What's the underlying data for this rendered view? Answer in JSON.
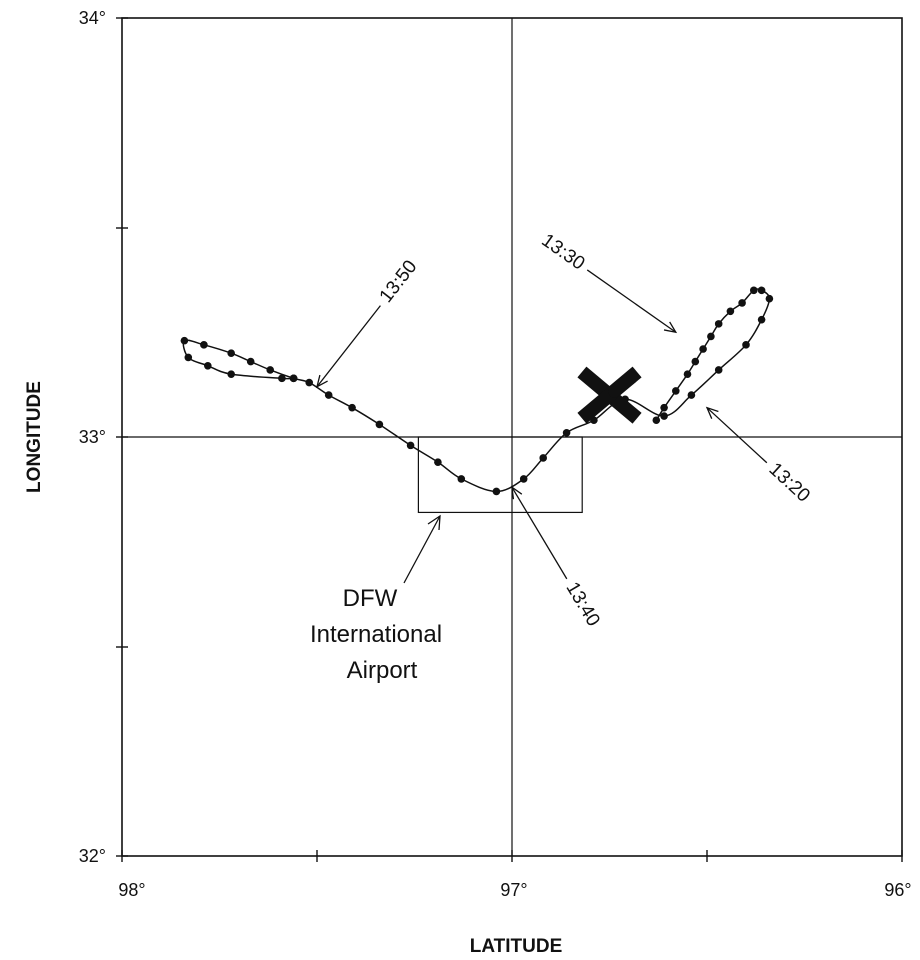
{
  "chart_data": {
    "type": "line",
    "xlabel": "LATITUDE",
    "ylabel": "LONGITUDE",
    "xlim": [
      98,
      96
    ],
    "ylim": [
      32,
      34
    ],
    "x_ticks": [
      "98°",
      "97°",
      "96°"
    ],
    "y_ticks": [
      "34°",
      "33°",
      "32°"
    ],
    "airport_box": {
      "x0": 97.24,
      "x1": 96.82,
      "y0": 32.82,
      "y1": 33.0
    },
    "airport_label": [
      "DFW",
      "International",
      "Airport"
    ],
    "crash_marker": {
      "x": 96.75,
      "y": 33.1,
      "icon": "aircraft-crash-x-icon"
    },
    "track": [
      [
        96.63,
        33.04
      ],
      [
        96.61,
        33.07
      ],
      [
        96.58,
        33.11
      ],
      [
        96.55,
        33.15
      ],
      [
        96.53,
        33.18
      ],
      [
        96.51,
        33.21
      ],
      [
        96.49,
        33.24
      ],
      [
        96.47,
        33.27
      ],
      [
        96.44,
        33.3
      ],
      [
        96.41,
        33.32
      ],
      [
        96.38,
        33.35
      ],
      [
        96.36,
        33.35
      ],
      [
        96.34,
        33.33
      ],
      [
        96.36,
        33.28
      ],
      [
        96.4,
        33.22
      ],
      [
        96.47,
        33.16
      ],
      [
        96.54,
        33.1
      ],
      [
        96.61,
        33.05
      ],
      [
        96.71,
        33.09
      ],
      [
        96.79,
        33.04
      ],
      [
        96.86,
        33.01
      ],
      [
        96.92,
        32.95
      ],
      [
        96.97,
        32.9
      ],
      [
        97.04,
        32.87
      ],
      [
        97.13,
        32.9
      ],
      [
        97.19,
        32.94
      ],
      [
        97.26,
        32.98
      ],
      [
        97.34,
        33.03
      ],
      [
        97.41,
        33.07
      ],
      [
        97.47,
        33.1
      ],
      [
        97.52,
        33.13
      ],
      [
        97.56,
        33.14
      ],
      [
        97.62,
        33.16
      ],
      [
        97.67,
        33.18
      ],
      [
        97.72,
        33.2
      ],
      [
        97.79,
        33.22
      ],
      [
        97.84,
        33.23
      ],
      [
        97.83,
        33.19
      ],
      [
        97.78,
        33.17
      ],
      [
        97.72,
        33.15
      ],
      [
        97.59,
        33.14
      ],
      [
        97.56,
        33.14
      ]
    ],
    "time_labels": [
      {
        "text": "13:50",
        "x": 97.29,
        "y": 33.37,
        "arrow_to": [
          97.5,
          33.12
        ]
      },
      {
        "text": "13:30",
        "x": 96.87,
        "y": 33.44,
        "arrow_to": [
          96.58,
          33.25
        ]
      },
      {
        "text": "13:20",
        "x": 96.29,
        "y": 32.89,
        "arrow_to": [
          96.5,
          33.07
        ]
      },
      {
        "text": "13:40",
        "x": 96.82,
        "y": 32.6,
        "arrow_to": [
          97.0,
          32.88
        ]
      }
    ]
  }
}
